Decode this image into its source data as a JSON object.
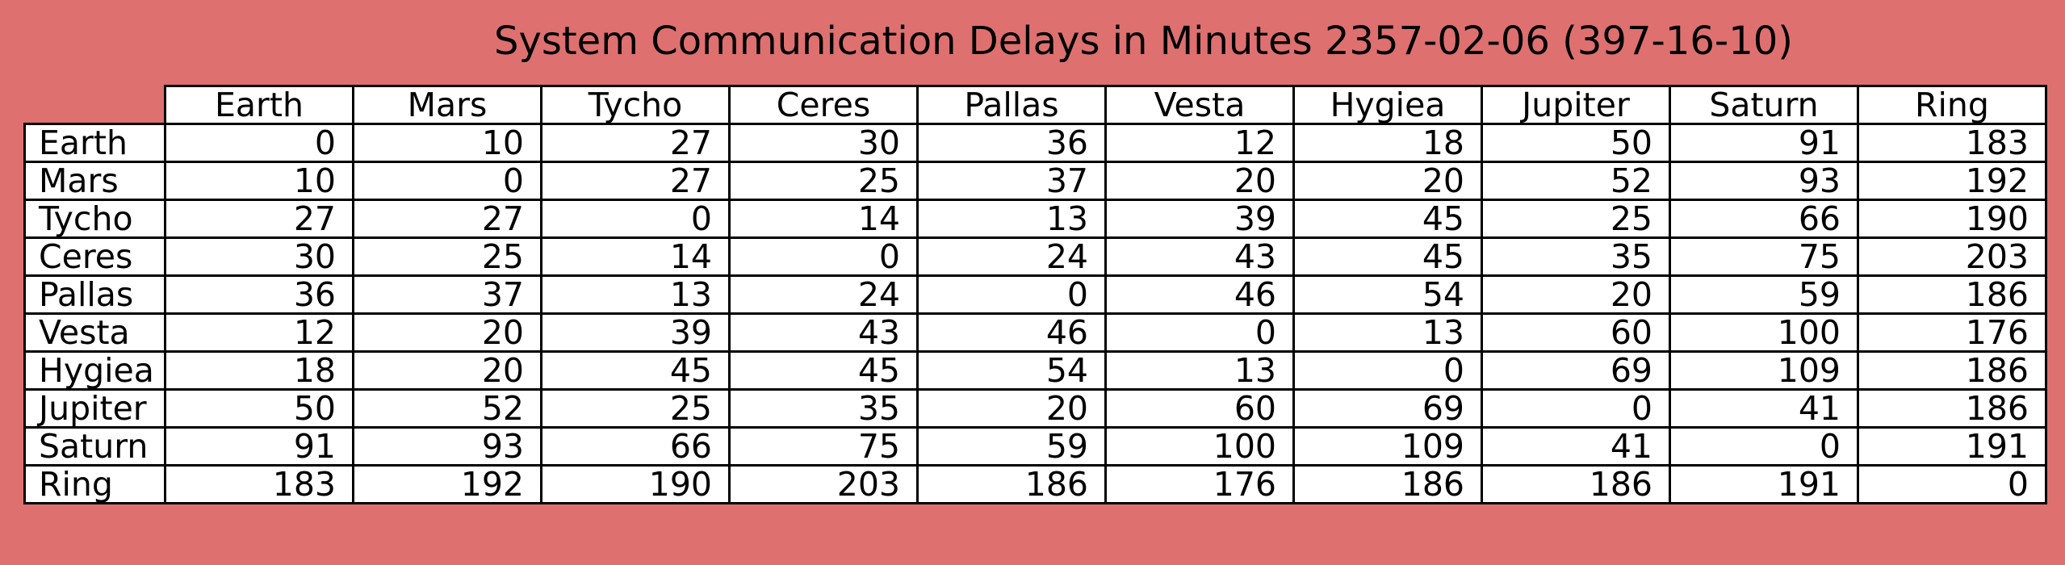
{
  "chart_data": {
    "type": "table",
    "title": "System Communication Delays in Minutes 2357-02-06 (397-16-10)",
    "columns": [
      "Earth",
      "Mars",
      "Tycho",
      "Ceres",
      "Pallas",
      "Vesta",
      "Hygiea",
      "Jupiter",
      "Saturn",
      "Ring"
    ],
    "rows": [
      {
        "label": "Earth",
        "values": [
          0,
          10,
          27,
          30,
          36,
          12,
          18,
          50,
          91,
          183
        ]
      },
      {
        "label": "Mars",
        "values": [
          10,
          0,
          27,
          25,
          37,
          20,
          20,
          52,
          93,
          192
        ]
      },
      {
        "label": "Tycho",
        "values": [
          27,
          27,
          0,
          14,
          13,
          39,
          45,
          25,
          66,
          190
        ]
      },
      {
        "label": "Ceres",
        "values": [
          30,
          25,
          14,
          0,
          24,
          43,
          45,
          35,
          75,
          203
        ]
      },
      {
        "label": "Pallas",
        "values": [
          36,
          37,
          13,
          24,
          0,
          46,
          54,
          20,
          59,
          186
        ]
      },
      {
        "label": "Vesta",
        "values": [
          12,
          20,
          39,
          43,
          46,
          0,
          13,
          60,
          100,
          176
        ]
      },
      {
        "label": "Hygiea",
        "values": [
          18,
          20,
          45,
          45,
          54,
          13,
          0,
          69,
          109,
          186
        ]
      },
      {
        "label": "Jupiter",
        "values": [
          50,
          52,
          25,
          35,
          20,
          60,
          69,
          0,
          41,
          186
        ]
      },
      {
        "label": "Saturn",
        "values": [
          91,
          93,
          66,
          75,
          59,
          100,
          109,
          41,
          0,
          191
        ]
      },
      {
        "label": "Ring",
        "values": [
          183,
          192,
          190,
          203,
          186,
          176,
          186,
          186,
          191,
          0
        ]
      }
    ]
  },
  "colors": {
    "background": "#df7070",
    "cell": "#ffffff",
    "border": "#000000"
  }
}
